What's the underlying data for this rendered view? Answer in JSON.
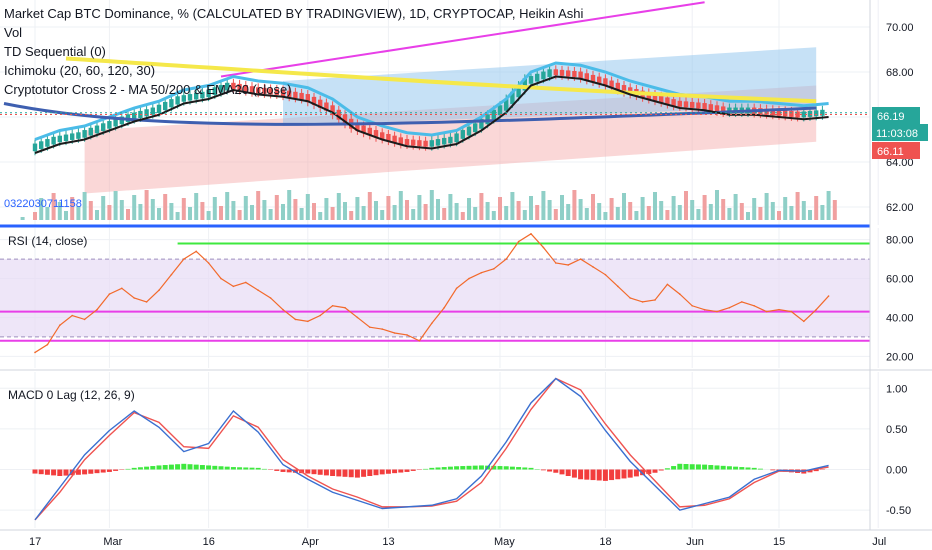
{
  "header": {
    "title": "Market Cap BTC Dominance, % (CALCULATED BY TRADINGVIEW), 1D, CRYPTOCAP, Heikin Ashi",
    "indicators": [
      "Vol",
      "TD Sequential (0)",
      "Ichimoku (20, 60, 120, 30)",
      "Cryptotutor Cross 2 - MA 50/200 & EMA20 (close)"
    ],
    "vol_readout": "0322030711158"
  },
  "badges": {
    "last_price": "66.19",
    "countdown": "11:03:08",
    "low_level": "66.11"
  },
  "colors": {
    "price_up": "#26a69a",
    "price_down": "#ef5350",
    "ema20": "#4bbce8",
    "ma50": "#3e5fb0",
    "ma200": "#f5e84a",
    "trendline": "#e83fe8",
    "rsi_line": "#f26a2c",
    "macd_line": "#3a6fd0",
    "signal_line": "#ef5350"
  },
  "chart_data": [
    {
      "type": "line",
      "title": "Market Cap BTC Dominance, % (CALCULATED BY TRADINGVIEW), 1D, CRYPTOCAP, Heikin Ashi",
      "ylim": [
        61.2,
        71.2
      ],
      "y_ticks": [
        62.0,
        64.0,
        66.0,
        68.0,
        70.0
      ],
      "x_ticks": [
        "17",
        "Mar",
        "16",
        "Apr",
        "13",
        "May",
        "18",
        "Jun",
        "15",
        "Jul"
      ],
      "x_tick_days": [
        0,
        12,
        28,
        44,
        57,
        75,
        92,
        106,
        120,
        136
      ],
      "series": [
        {
          "name": "close",
          "x": [
            0,
            4,
            8,
            12,
            16,
            20,
            24,
            28,
            32,
            36,
            40,
            44,
            48,
            52,
            56,
            60,
            64,
            68,
            72,
            76,
            80,
            84,
            88,
            92,
            96,
            100,
            104,
            108,
            112,
            116,
            120,
            124,
            128
          ],
          "values": [
            64.6,
            65.0,
            65.2,
            65.6,
            66.0,
            66.3,
            66.8,
            67.0,
            67.4,
            67.2,
            67.1,
            66.9,
            66.4,
            65.6,
            65.2,
            64.9,
            64.8,
            65.0,
            65.6,
            66.4,
            67.6,
            68.0,
            67.9,
            67.6,
            67.2,
            66.9,
            66.6,
            66.5,
            66.3,
            66.3,
            66.2,
            66.1,
            66.2
          ]
        }
      ],
      "y_range": [
        62.0,
        70.0
      ]
    },
    {
      "type": "line",
      "title": "RSI (14, close)",
      "ylim": [
        14,
        86
      ],
      "y_ticks": [
        20.0,
        40.0,
        60.0,
        80.0
      ],
      "series": [
        {
          "name": "RSI",
          "x": [
            0,
            2,
            4,
            6,
            8,
            10,
            12,
            14,
            16,
            18,
            20,
            22,
            24,
            26,
            28,
            30,
            32,
            34,
            36,
            38,
            40,
            42,
            44,
            46,
            48,
            50,
            52,
            54,
            56,
            58,
            60,
            62,
            64,
            66,
            68,
            70,
            72,
            74,
            76,
            78,
            80,
            82,
            84,
            86,
            88,
            90,
            92,
            94,
            96,
            98,
            100,
            102,
            104,
            106,
            108,
            110,
            112,
            114,
            116,
            118,
            120,
            122,
            124,
            126,
            128
          ],
          "values": [
            22,
            26,
            36,
            41,
            39,
            44,
            52,
            55,
            50,
            48,
            54,
            62,
            70,
            74,
            68,
            60,
            56,
            58,
            54,
            50,
            44,
            39,
            38,
            41,
            46,
            45,
            40,
            35,
            34,
            32,
            31,
            28,
            37,
            45,
            55,
            60,
            63,
            65,
            70,
            79,
            83,
            76,
            68,
            67,
            70,
            66,
            62,
            56,
            50,
            48,
            49,
            57,
            52,
            46,
            44,
            43,
            45,
            48,
            46,
            43,
            44,
            43,
            38,
            44,
            51
          ]
        }
      ],
      "levels": [
        30,
        70
      ],
      "trendlines": [
        78,
        43,
        28
      ]
    },
    {
      "type": "bar",
      "title": "MACD 0 Lag (12, 26, 9)",
      "ylim": [
        -0.72,
        1.2
      ],
      "y_ticks": [
        -0.5,
        0.0,
        0.5,
        1.0
      ],
      "series": [
        {
          "name": "MACD",
          "x": [
            0,
            4,
            8,
            12,
            16,
            20,
            24,
            28,
            32,
            36,
            40,
            44,
            48,
            52,
            56,
            60,
            64,
            68,
            72,
            76,
            80,
            84,
            88,
            92,
            96,
            100,
            104,
            108,
            112,
            116,
            120,
            124,
            128
          ],
          "values": [
            -0.62,
            -0.22,
            0.18,
            0.48,
            0.72,
            0.52,
            0.22,
            0.32,
            0.72,
            0.46,
            0.06,
            -0.12,
            -0.28,
            -0.38,
            -0.48,
            -0.46,
            -0.44,
            -0.36,
            -0.08,
            0.34,
            0.82,
            1.12,
            0.9,
            0.48,
            0.1,
            -0.2,
            -0.5,
            -0.42,
            -0.34,
            -0.12,
            -0.01,
            -0.02,
            0.05
          ]
        },
        {
          "name": "Signal",
          "x": [
            0,
            4,
            8,
            12,
            16,
            20,
            24,
            28,
            32,
            36,
            40,
            44,
            48,
            52,
            56,
            60,
            64,
            68,
            72,
            76,
            80,
            84,
            88,
            92,
            96,
            100,
            104,
            108,
            112,
            116,
            120,
            124,
            128
          ],
          "values": [
            -0.62,
            -0.28,
            0.12,
            0.42,
            0.7,
            0.58,
            0.28,
            0.26,
            0.66,
            0.52,
            0.12,
            -0.08,
            -0.24,
            -0.34,
            -0.46,
            -0.46,
            -0.45,
            -0.39,
            -0.16,
            0.26,
            0.74,
            1.12,
            0.98,
            0.56,
            0.18,
            -0.14,
            -0.46,
            -0.44,
            -0.36,
            -0.16,
            -0.02,
            -0.02,
            0.03
          ]
        },
        {
          "name": "Histogram",
          "x": [
            0,
            4,
            8,
            12,
            16,
            20,
            24,
            28,
            32,
            36,
            40,
            44,
            48,
            52,
            56,
            60,
            64,
            68,
            72,
            76,
            80,
            84,
            88,
            92,
            96,
            100,
            104,
            108,
            112,
            116,
            120,
            124,
            128
          ],
          "values": [
            -0.05,
            -0.08,
            -0.06,
            -0.03,
            0.02,
            0.05,
            0.07,
            0.05,
            0.03,
            0.02,
            -0.03,
            -0.05,
            -0.08,
            -0.1,
            -0.06,
            -0.03,
            0.02,
            0.04,
            0.05,
            0.04,
            0.02,
            -0.04,
            -0.12,
            -0.14,
            -0.1,
            -0.04,
            0.07,
            0.06,
            0.04,
            0.02,
            -0.02,
            -0.05,
            0.01
          ]
        }
      ]
    }
  ]
}
